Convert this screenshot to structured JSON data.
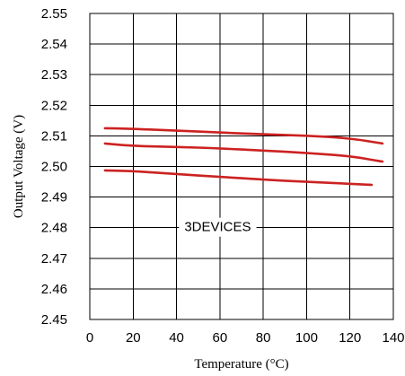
{
  "chart_data": {
    "type": "line",
    "title": "",
    "xlabel": "Temperature (°C)",
    "ylabel": "Output Voltage (V)",
    "xlim": [
      0,
      140
    ],
    "ylim": [
      2.45,
      2.55
    ],
    "x_ticks": [
      "0",
      "20",
      "40",
      "60",
      "80",
      "100",
      "120",
      "140"
    ],
    "y_ticks": [
      "2.45",
      "2.46",
      "2.47",
      "2.48",
      "2.49",
      "2.50",
      "2.51",
      "2.52",
      "2.53",
      "2.54",
      "2.55"
    ],
    "x_tick_values": [
      0,
      20,
      40,
      60,
      80,
      100,
      120,
      140
    ],
    "y_tick_values": [
      2.45,
      2.46,
      2.47,
      2.48,
      2.49,
      2.5,
      2.51,
      2.52,
      2.53,
      2.54,
      2.55
    ],
    "grid": true,
    "legend": "none",
    "annotation": "3DEVICES",
    "line_color": "#cc2222",
    "series": [
      {
        "x": [
          7,
          20,
          40,
          60,
          80,
          100,
          120,
          135
        ],
        "y": [
          2.5125,
          2.5123,
          2.5117,
          2.5111,
          2.5105,
          2.5101,
          2.5092,
          2.5075
        ]
      },
      {
        "x": [
          7,
          20,
          40,
          60,
          80,
          100,
          120,
          135
        ],
        "y": [
          2.5075,
          2.5067,
          2.5064,
          2.5059,
          2.5052,
          2.5044,
          2.5034,
          2.5016
        ]
      },
      {
        "x": [
          7,
          20,
          40,
          60,
          80,
          100,
          120,
          130
        ],
        "y": [
          2.4987,
          2.4985,
          2.4975,
          2.4966,
          2.4957,
          2.495,
          2.4943,
          2.494
        ]
      }
    ]
  }
}
